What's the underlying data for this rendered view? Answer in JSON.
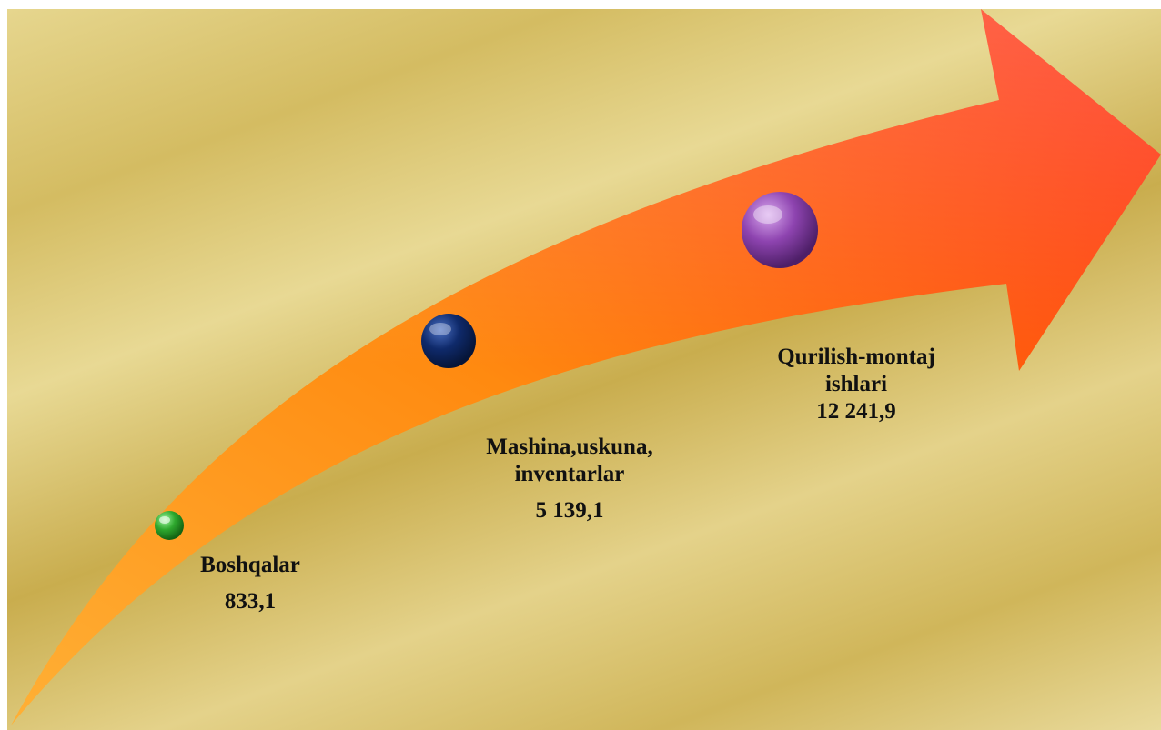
{
  "diagram": {
    "items": [
      {
        "label": "Boshqalar",
        "value": "833,1",
        "marker_color": "#2ea82e"
      },
      {
        "label_lines": [
          "Mashina,uskuna,",
          "inventarlar"
        ],
        "value": "5 139,1",
        "marker_color": "#0f2a6b"
      },
      {
        "label_lines": [
          "Qurilish-montaj",
          "ishlari"
        ],
        "value": "12 241,9",
        "marker_color": "#8e44b0"
      }
    ],
    "arrow_colors": {
      "start": "#ff9f1a",
      "mid": "#ff7a0a",
      "end": "#ff2a0a"
    }
  }
}
